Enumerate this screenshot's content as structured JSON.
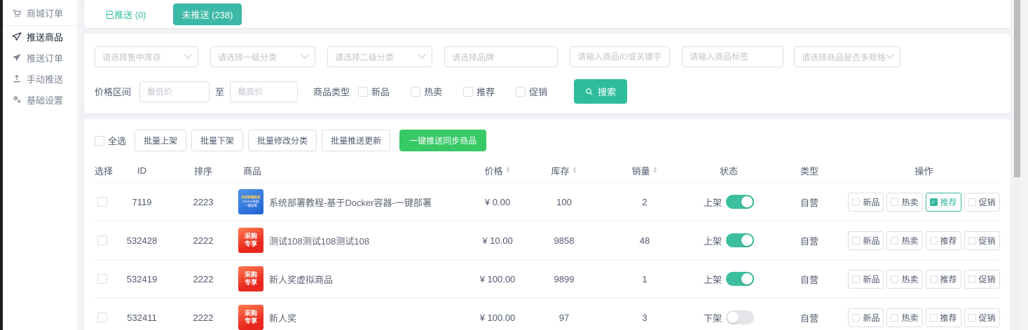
{
  "colors": {
    "teal": "#32bea0",
    "green": "#36c966",
    "page_bg": "#f0f2f5"
  },
  "sidebar": {
    "items": [
      {
        "label": "商城订单",
        "icon": "cart-icon",
        "active": false
      },
      {
        "label": "推送商品",
        "icon": "send-outline-icon",
        "active": true
      },
      {
        "label": "推送订单",
        "icon": "send-filled-icon",
        "active": false
      },
      {
        "label": "手动推送",
        "icon": "upload-icon",
        "active": false
      },
      {
        "label": "基础设置",
        "icon": "gears-icon",
        "active": false
      }
    ]
  },
  "tabs": {
    "pushed_label": "已推送 (0)",
    "unpushed_label": "未推送 (238)"
  },
  "filters": {
    "stock_select_placeholder": "请选择售中库存",
    "category1_placeholder": "请选择一级分类",
    "category2_placeholder": "请选择二级分类",
    "brand_placeholder": "请选择品牌",
    "keyword_placeholder": "请输入商品ID或关键字",
    "tag_placeholder": "请输入商品标签",
    "spec_placeholder": "请选择商品是否多规格",
    "price_range_label": "价格区间",
    "min_price_placeholder": "最低价",
    "to_label": "至",
    "max_price_placeholder": "最高价",
    "product_type_label": "商品类型",
    "type_options": [
      "新品",
      "热卖",
      "推荐",
      "促销"
    ],
    "search_button": "搜索"
  },
  "batch": {
    "select_all_label": "全选",
    "buttons": [
      "批量上架",
      "批量下架",
      "批量修改分类",
      "批量推送更新"
    ],
    "sync_button": "一键推送同步商品"
  },
  "table": {
    "headers": {
      "select": "选择",
      "id": "ID",
      "sort": "排序",
      "product": "商品",
      "price": "价格",
      "stock": "库存",
      "sales": "销量",
      "status": "状态",
      "type": "类型",
      "actions": "操作"
    },
    "tag_labels": [
      "新品",
      "热卖",
      "推荐",
      "促销"
    ],
    "rows": [
      {
        "id": "7119",
        "sort": "2223",
        "name": "系统部署教程-基于Docker容器-一键部署",
        "thumb": "blue",
        "thumb_lines": [
          "系统部署教程",
          "Docker容器",
          "一键部署"
        ],
        "price": "¥ 0.00",
        "stock": "100",
        "sales": "2",
        "status": "上架",
        "status_on": true,
        "type": "自营",
        "tags": [
          false,
          false,
          true,
          false
        ]
      },
      {
        "id": "532428",
        "sort": "2222",
        "name": "测试108测试108测试108",
        "thumb": "red",
        "thumb_lines": [
          "采购",
          "专享"
        ],
        "price": "¥ 10.00",
        "stock": "9858",
        "sales": "48",
        "status": "上架",
        "status_on": true,
        "type": "自营",
        "tags": [
          false,
          false,
          false,
          false
        ]
      },
      {
        "id": "532419",
        "sort": "2222",
        "name": "新人奖虚拟商品",
        "thumb": "red",
        "thumb_lines": [
          "采购",
          "专享"
        ],
        "price": "¥ 100.00",
        "stock": "9899",
        "sales": "1",
        "status": "上架",
        "status_on": true,
        "type": "自营",
        "tags": [
          false,
          false,
          false,
          false
        ]
      },
      {
        "id": "532411",
        "sort": "2222",
        "name": "新人奖",
        "thumb": "red",
        "thumb_lines": [
          "采购",
          "专享"
        ],
        "price": "¥ 100.00",
        "stock": "97",
        "sales": "3",
        "status": "下架",
        "status_on": false,
        "type": "自营",
        "tags": [
          false,
          false,
          false,
          false
        ]
      }
    ]
  }
}
